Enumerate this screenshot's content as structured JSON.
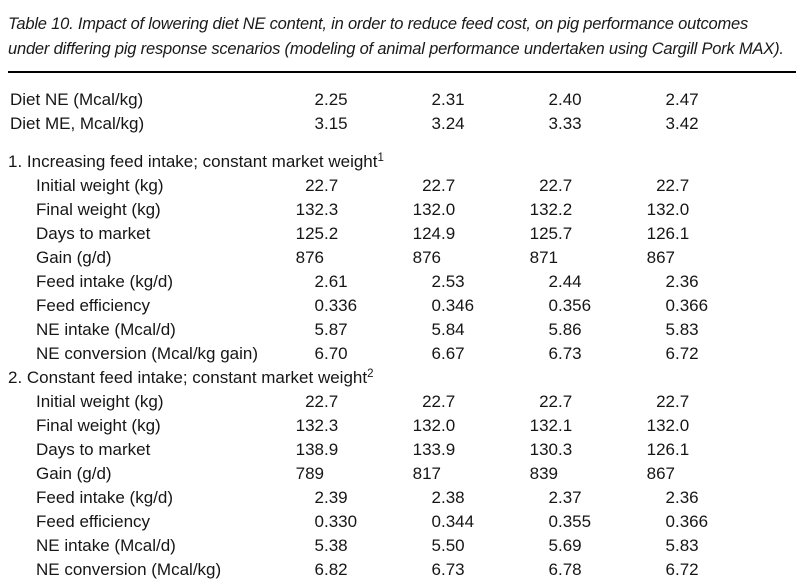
{
  "caption": {
    "line1": "Table 10. Impact of lowering diet NE content, in order to reduce feed cost, on pig performance outcomes",
    "line2": "under differing pig response scenarios (modeling of animal performance undertaken using Cargill Pork MAX)."
  },
  "table": {
    "columns": 4,
    "header_rows": [
      {
        "label": "Diet NE (Mcal/kg)",
        "values": [
          "2.25",
          "2.31",
          "2.40",
          "2.47"
        ]
      },
      {
        "label": "Diet ME, Mcal/kg)",
        "values": [
          "3.15",
          "3.24",
          "3.33",
          "3.42"
        ]
      }
    ],
    "sections": [
      {
        "heading": "1. Increasing feed intake; constant market weight",
        "footnote_mark": "1",
        "rows": [
          {
            "label": "Initial weight (kg)",
            "values": [
              "22.7",
              "22.7",
              "22.7",
              "22.7"
            ]
          },
          {
            "label": "Final weight (kg)",
            "values": [
              "132.3",
              "132.0",
              "132.2",
              "132.0"
            ]
          },
          {
            "label": "Days to market",
            "values": [
              "125.2",
              "124.9",
              "125.7",
              "126.1"
            ]
          },
          {
            "label": "Gain (g/d)",
            "values": [
              "876",
              "876",
              "871",
              "867"
            ]
          },
          {
            "label": "Feed intake (kg/d)",
            "values": [
              "2.61",
              "2.53",
              "2.44",
              "2.36"
            ]
          },
          {
            "label": "Feed efficiency",
            "values": [
              "0.336",
              "0.346",
              "0.356",
              "0.366"
            ]
          },
          {
            "label": "NE intake (Mcal/d)",
            "values": [
              "5.87",
              "5.84",
              "5.86",
              "5.83"
            ]
          },
          {
            "label": "NE conversion (Mcal/kg gain)",
            "values": [
              "6.70",
              "6.67",
              "6.73",
              "6.72"
            ]
          }
        ]
      },
      {
        "heading": "2. Constant feed intake; constant market weight",
        "footnote_mark": "2",
        "rows": [
          {
            "label": "Initial weight (kg)",
            "values": [
              "22.7",
              "22.7",
              "22.7",
              "22.7"
            ]
          },
          {
            "label": "Final weight (kg)",
            "values": [
              "132.3",
              "132.0",
              "132.1",
              "132.0"
            ]
          },
          {
            "label": "Days to market",
            "values": [
              "138.9",
              "133.9",
              "130.3",
              "126.1"
            ]
          },
          {
            "label": "Gain (g/d)",
            "values": [
              "789",
              "817",
              "839",
              "867"
            ]
          },
          {
            "label": "Feed intake (kg/d)",
            "values": [
              "2.39",
              "2.38",
              "2.37",
              "2.36"
            ]
          },
          {
            "label": "Feed efficiency",
            "values": [
              "0.330",
              "0.344",
              "0.355",
              "0.366"
            ]
          },
          {
            "label": "NE intake (Mcal/d)",
            "values": [
              "5.38",
              "5.50",
              "5.69",
              "5.83"
            ]
          },
          {
            "label": "NE conversion (Mcal/kg)",
            "values": [
              "6.82",
              "6.73",
              "6.78",
              "6.72"
            ]
          }
        ]
      }
    ]
  }
}
